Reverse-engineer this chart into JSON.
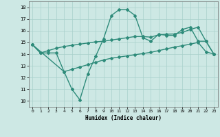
{
  "line1_x": [
    0,
    1,
    2,
    3,
    4,
    5,
    6,
    7,
    8,
    9,
    10,
    11,
    12,
    13,
    14,
    15,
    16,
    17,
    18,
    19,
    20,
    21,
    22,
    23
  ],
  "line1_y": [
    14.8,
    14.1,
    14.1,
    14.1,
    12.5,
    11.0,
    10.1,
    12.3,
    13.8,
    15.3,
    17.3,
    17.8,
    17.8,
    17.3,
    15.4,
    15.1,
    15.7,
    15.6,
    15.6,
    16.1,
    16.3,
    15.1,
    15.1,
    14.0
  ],
  "line2_x": [
    0,
    4,
    5,
    6,
    7,
    8,
    9,
    10,
    11,
    12,
    13,
    14,
    15,
    16,
    17,
    18,
    19,
    20,
    21,
    22,
    23
  ],
  "line2_y": [
    14.8,
    12.5,
    12.7,
    12.9,
    13.1,
    13.3,
    13.5,
    13.65,
    13.75,
    13.85,
    13.95,
    14.05,
    14.15,
    14.3,
    14.45,
    14.6,
    14.72,
    14.85,
    15.0,
    14.2,
    14.0
  ],
  "line3_x": [
    0,
    1,
    2,
    3,
    4,
    5,
    6,
    7,
    8,
    9,
    10,
    11,
    12,
    13,
    14,
    15,
    16,
    17,
    18,
    19,
    20,
    21,
    22,
    23
  ],
  "line3_y": [
    14.8,
    14.1,
    14.3,
    14.5,
    14.65,
    14.75,
    14.85,
    14.95,
    15.05,
    15.1,
    15.2,
    15.3,
    15.4,
    15.5,
    15.5,
    15.45,
    15.65,
    15.7,
    15.72,
    15.85,
    16.1,
    16.3,
    15.1,
    14.0
  ],
  "color": "#2e8b7a",
  "bg_color": "#cde8e4",
  "grid_color": "#a8d0cb",
  "xlabel": "Humidex (Indice chaleur)",
  "ylim": [
    9.5,
    18.5
  ],
  "xlim": [
    -0.5,
    23.5
  ],
  "yticks": [
    10,
    11,
    12,
    13,
    14,
    15,
    16,
    17,
    18
  ],
  "xticks": [
    0,
    1,
    2,
    3,
    4,
    5,
    6,
    7,
    8,
    9,
    10,
    11,
    12,
    13,
    14,
    15,
    16,
    17,
    18,
    19,
    20,
    21,
    22,
    23
  ],
  "marker": "D",
  "markersize": 2.0,
  "linewidth": 1.0
}
